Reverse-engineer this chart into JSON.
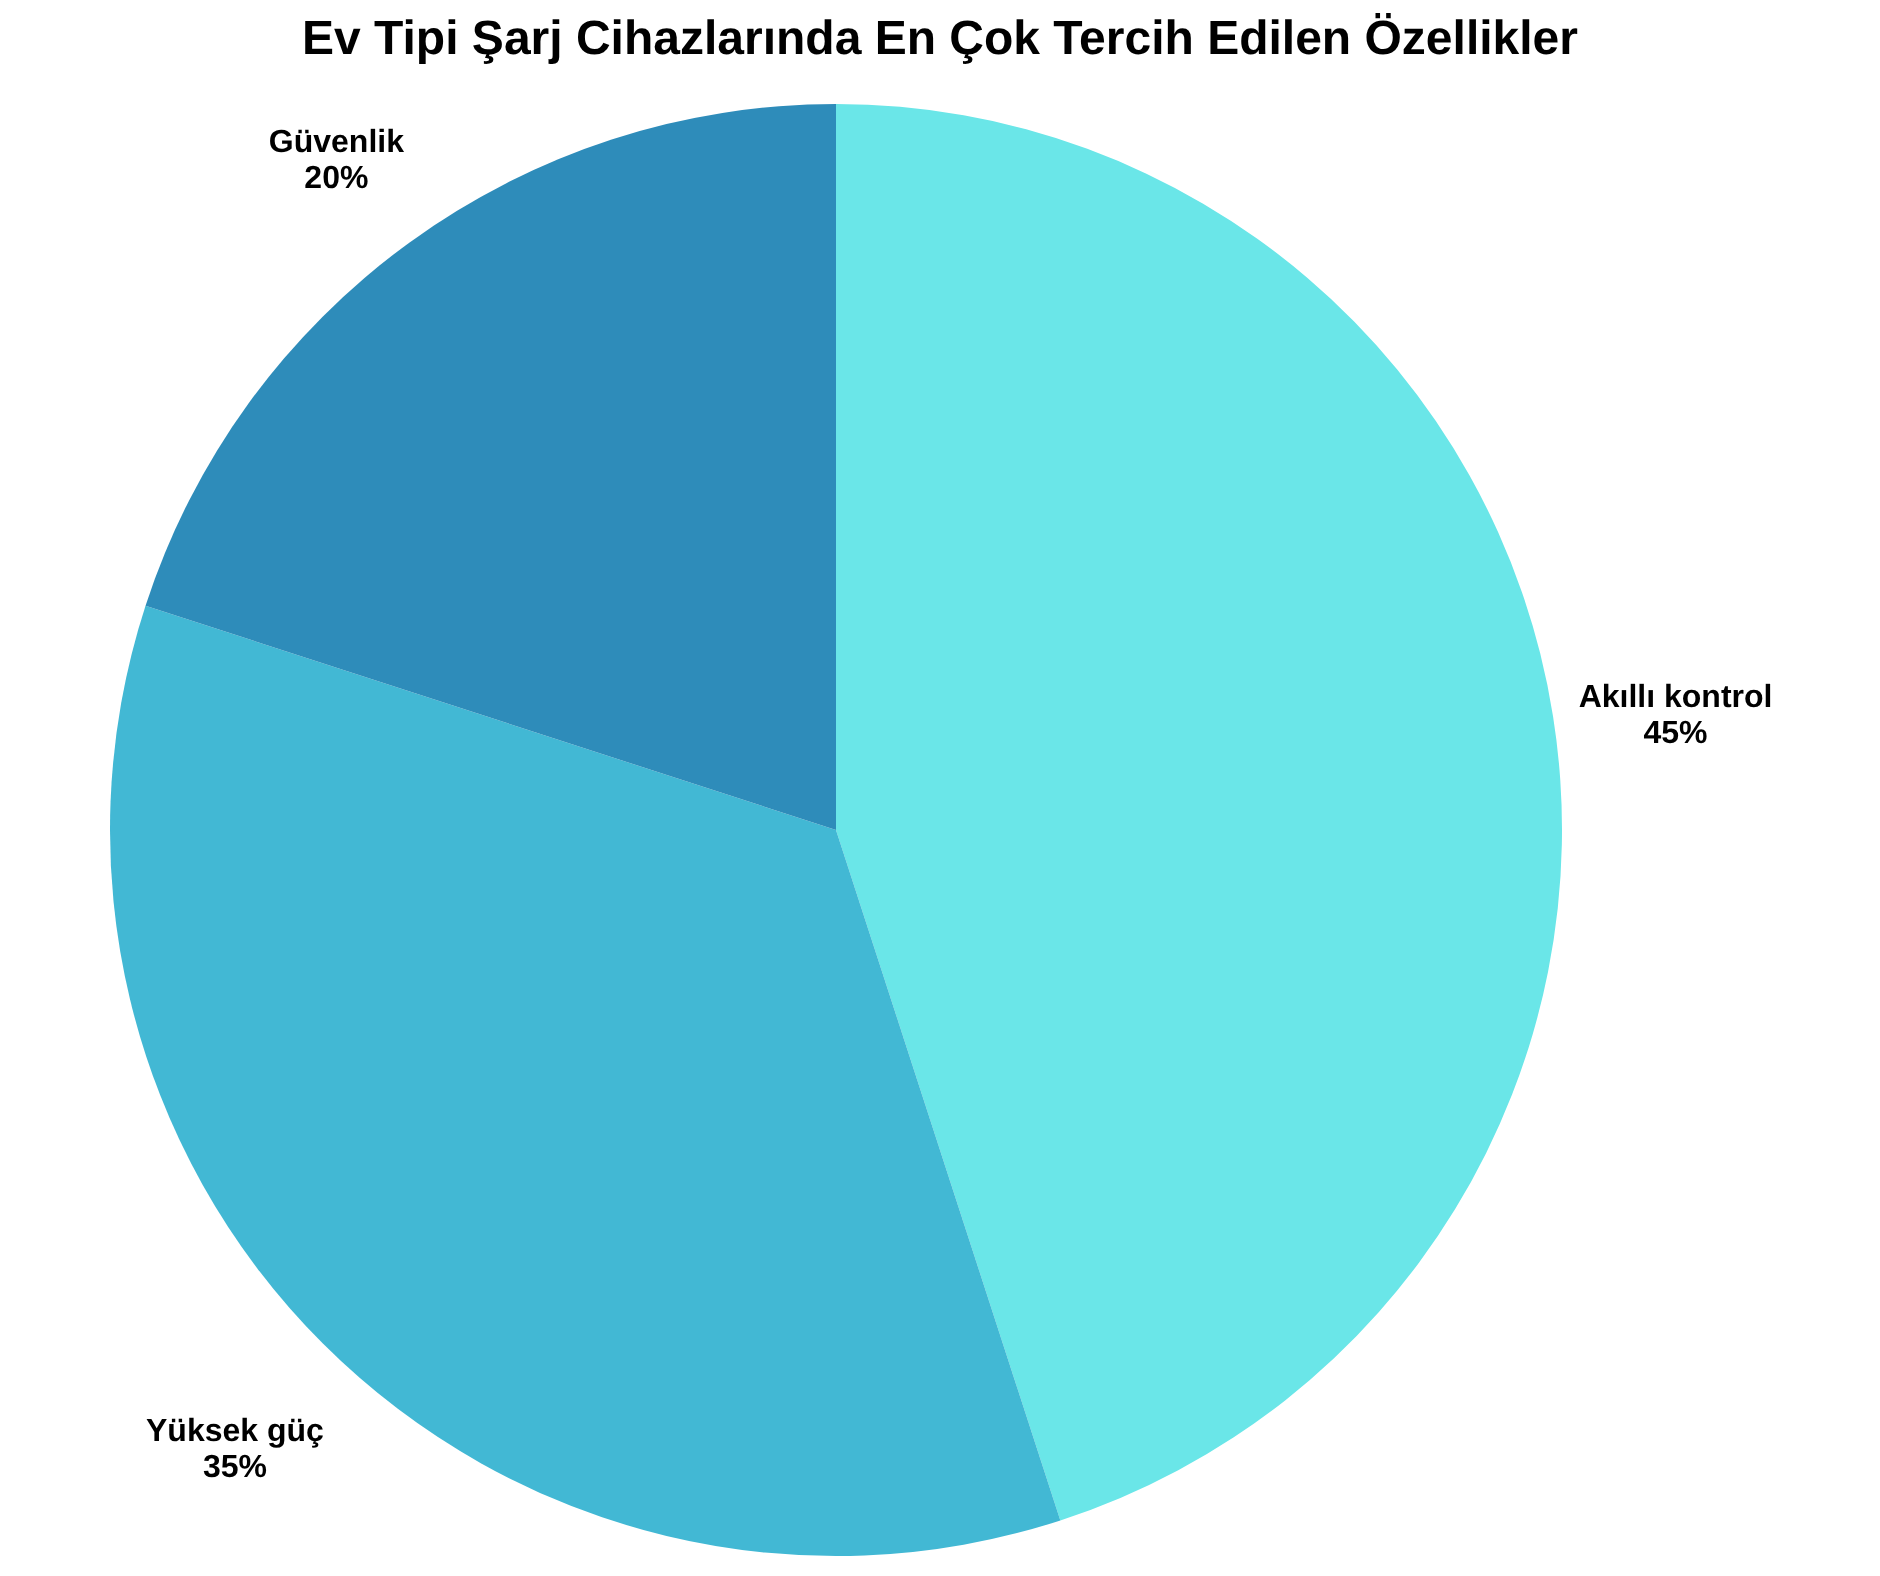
{
  "chart_data": {
    "type": "pie",
    "title": "Ev Tipi Şarj Cihazlarında En Çok Tercih Edilen Özellikler",
    "categories": [
      "Akıllı kontrol",
      "Yüksek güç",
      "Güvenlik"
    ],
    "values": [
      45,
      35,
      20
    ],
    "colors": [
      "#6ae6e8",
      "#42b8d4",
      "#2e8cba"
    ],
    "value_labels": [
      "45%",
      "35%",
      "20%"
    ],
    "legend": false
  }
}
